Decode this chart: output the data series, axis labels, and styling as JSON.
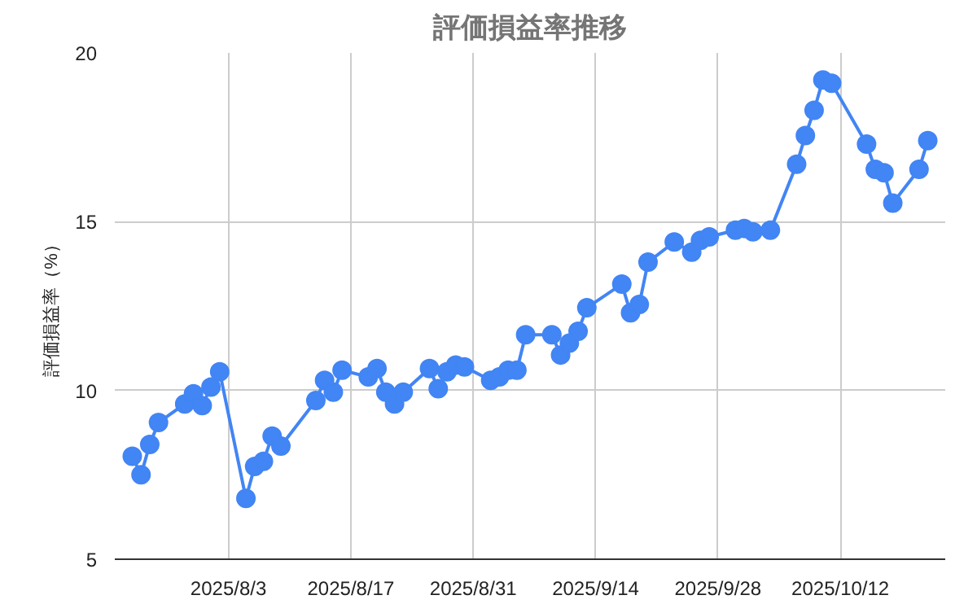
{
  "chart_data": {
    "type": "line",
    "title": "評価損益率推移",
    "ylabel": "評価損益率（%）",
    "x": [
      "2025-07-23",
      "2025-07-24",
      "2025-07-25",
      "2025-07-26",
      "2025-07-29",
      "2025-07-30",
      "2025-07-31",
      "2025-08-01",
      "2025-08-02",
      "2025-08-05",
      "2025-08-06",
      "2025-08-07",
      "2025-08-08",
      "2025-08-09",
      "2025-08-13",
      "2025-08-14",
      "2025-08-15",
      "2025-08-16",
      "2025-08-19",
      "2025-08-20",
      "2025-08-21",
      "2025-08-22",
      "2025-08-23",
      "2025-08-26",
      "2025-08-27",
      "2025-08-28",
      "2025-08-29",
      "2025-08-30",
      "2025-09-02",
      "2025-09-03",
      "2025-09-04",
      "2025-09-05",
      "2025-09-06",
      "2025-09-09",
      "2025-09-10",
      "2025-09-11",
      "2025-09-12",
      "2025-09-13",
      "2025-09-17",
      "2025-09-18",
      "2025-09-19",
      "2025-09-20",
      "2025-09-23",
      "2025-09-25",
      "2025-09-26",
      "2025-09-27",
      "2025-09-30",
      "2025-10-01",
      "2025-10-02",
      "2025-10-04",
      "2025-10-07",
      "2025-10-08",
      "2025-10-09",
      "2025-10-10",
      "2025-10-11",
      "2025-10-15",
      "2025-10-16",
      "2025-10-17",
      "2025-10-18",
      "2025-10-21",
      "2025-10-22"
    ],
    "series": [
      {
        "color": "#4285f4",
        "values": [
          8.05,
          7.5,
          8.4,
          9.05,
          9.6,
          9.9,
          9.55,
          10.1,
          10.55,
          6.8,
          7.75,
          7.9,
          8.65,
          8.35,
          9.7,
          10.3,
          9.95,
          10.6,
          10.4,
          10.65,
          9.95,
          9.6,
          9.95,
          10.65,
          10.05,
          10.55,
          10.75,
          10.7,
          10.3,
          10.4,
          10.6,
          10.6,
          11.65,
          11.65,
          11.05,
          11.4,
          11.75,
          12.45,
          13.15,
          12.3,
          12.55,
          13.8,
          14.4,
          14.1,
          14.45,
          14.55,
          14.75,
          14.8,
          14.7,
          14.75,
          16.7,
          17.55,
          18.3,
          19.2,
          19.1,
          17.3,
          16.55,
          16.45,
          15.55,
          16.55,
          17.4
        ]
      }
    ],
    "xlim": [
      "2025-07-21",
      "2025-10-24"
    ],
    "xticks": [
      {
        "value": "2025-08-03",
        "label": "2025/8/3"
      },
      {
        "value": "2025-08-17",
        "label": "2025/8/17"
      },
      {
        "value": "2025-08-31",
        "label": "2025/8/31"
      },
      {
        "value": "2025-09-14",
        "label": "2025/9/14"
      },
      {
        "value": "2025-09-28",
        "label": "2025/9/28"
      },
      {
        "value": "2025-10-12",
        "label": "2025/10/12"
      }
    ],
    "ylim": [
      5,
      20
    ],
    "yticks": [
      5,
      10,
      15,
      20
    ],
    "grid": true,
    "marker": "circle",
    "line_style": "solid"
  }
}
